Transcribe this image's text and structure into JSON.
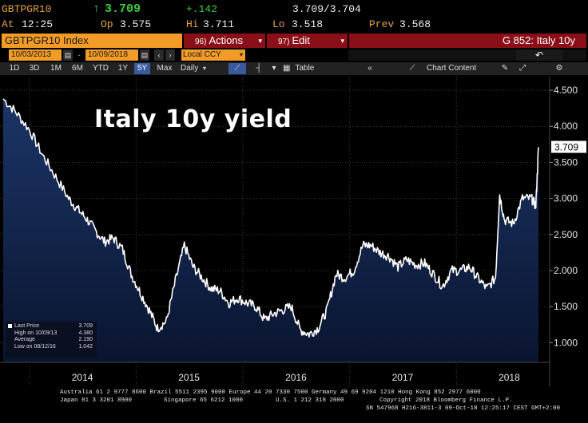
{
  "quote": {
    "ticker": "GBTPGR10",
    "last_arrow": "↑",
    "last": "3.709",
    "change": "+.142",
    "bid_ask": "3.709/3.704",
    "at_label": "At",
    "at_time": "12:25",
    "open_label": "Op",
    "open": "3.575",
    "high_label": "Hi",
    "high": "3.711",
    "low_label": "Lo",
    "low": "3.518",
    "prev_label": "Prev",
    "prev": "3.568"
  },
  "toolbar": {
    "security_box": "GBTPGR10 Index",
    "actions_num": "96)",
    "actions_label": "Actions",
    "edit_num": "97)",
    "edit_label": "Edit",
    "dropdown_glyph": "▾",
    "security_title": "G 852: Italy 10y",
    "date_from": "10/03/2013",
    "date_to": "10/09/2018",
    "currency": "Local CCY",
    "undo_glyph": "↶",
    "periods": [
      "1D",
      "3D",
      "1M",
      "6M",
      "YTD",
      "1Y",
      "5Y",
      "Max"
    ],
    "active_period": "5Y",
    "frequency": "Daily",
    "table_label": "Table",
    "chart_content_label": "Chart Content",
    "collapse_glyph": "«",
    "settings_glyph": "⚙"
  },
  "chart_data": {
    "type": "area",
    "title": "Italy 10y yield",
    "xlabel": "",
    "ylabel": "",
    "x_ticks": [
      "2014",
      "2015",
      "2016",
      "2017",
      "2018"
    ],
    "y_ticks": [
      "4.500",
      "4.000",
      "3.500",
      "3.000",
      "2.500",
      "2.000",
      "1.500",
      "1.000"
    ],
    "ylim": [
      0.75,
      4.6
    ],
    "xlim": [
      "2013-10-03",
      "2018-10-09"
    ],
    "grid": true,
    "last_value_label": "3.709",
    "series": [
      {
        "name": "Last Price",
        "color": "#ffffff",
        "fill_top": "#1b3566",
        "fill_bottom": "#0a1530",
        "x": [
          "2013-10-03",
          "2013-11-15",
          "2014-01-01",
          "2014-02-15",
          "2014-04-01",
          "2014-05-15",
          "2014-06-15",
          "2014-07-15",
          "2014-08-15",
          "2014-09-15",
          "2014-10-15",
          "2014-11-15",
          "2014-12-15",
          "2015-01-15",
          "2015-02-15",
          "2015-03-15",
          "2015-04-15",
          "2015-05-15",
          "2015-06-15",
          "2015-07-15",
          "2015-08-15",
          "2015-09-15",
          "2015-10-15",
          "2015-11-15",
          "2015-12-15",
          "2016-01-15",
          "2016-02-15",
          "2016-03-15",
          "2016-04-15",
          "2016-05-15",
          "2016-06-15",
          "2016-07-15",
          "2016-08-15",
          "2016-09-15",
          "2016-10-15",
          "2016-11-15",
          "2016-12-15",
          "2017-01-15",
          "2017-02-15",
          "2017-03-15",
          "2017-04-15",
          "2017-05-15",
          "2017-06-15",
          "2017-07-15",
          "2017-08-15",
          "2017-09-15",
          "2017-10-15",
          "2017-11-15",
          "2017-12-15",
          "2018-01-15",
          "2018-02-15",
          "2018-03-15",
          "2018-04-15",
          "2018-05-15",
          "2018-05-29",
          "2018-06-15",
          "2018-07-15",
          "2018-08-15",
          "2018-09-15",
          "2018-09-30",
          "2018-10-09"
        ],
        "values": [
          4.38,
          4.2,
          3.95,
          3.6,
          3.3,
          3.0,
          2.85,
          2.72,
          2.55,
          2.4,
          2.45,
          2.3,
          1.95,
          1.7,
          1.45,
          1.2,
          1.3,
          1.85,
          2.35,
          2.05,
          1.9,
          1.75,
          1.72,
          1.55,
          1.62,
          1.55,
          1.5,
          1.32,
          1.4,
          1.45,
          1.5,
          1.18,
          1.12,
          1.2,
          1.45,
          1.95,
          1.9,
          2.0,
          2.35,
          2.35,
          2.25,
          2.2,
          2.05,
          2.15,
          2.08,
          2.1,
          1.95,
          1.78,
          2.0,
          2.0,
          2.05,
          1.9,
          1.75,
          1.9,
          3.05,
          2.7,
          2.65,
          3.0,
          3.0,
          2.9,
          3.709
        ]
      }
    ]
  },
  "legend": {
    "rows": [
      {
        "label": "Last Price",
        "value": "3.709"
      },
      {
        "label": "High on 10/09/13",
        "value": "4.380"
      },
      {
        "label": "Average",
        "value": "2.190"
      },
      {
        "label": "Low on 08/12/16",
        "value": "1.042"
      }
    ]
  },
  "footer": {
    "line1": "Australia 61 2 9777 8600 Brazil 5511 2395 9000 Europe 44 20 7330 7500 Germany 49 69 9204 1210 Hong Kong 852 2977 6000",
    "line2a": "Japan 81 3 3201 8900",
    "line2b": "Singapore 65 6212 1000",
    "line2c": "U.S. 1 212 318 2000",
    "line2d": "Copyright 2018 Bloomberg Finance L.P.",
    "line3": "SN 547968 H216-3811-3 09-Oct-18 12:25:17 CEST GMT+2:00"
  }
}
